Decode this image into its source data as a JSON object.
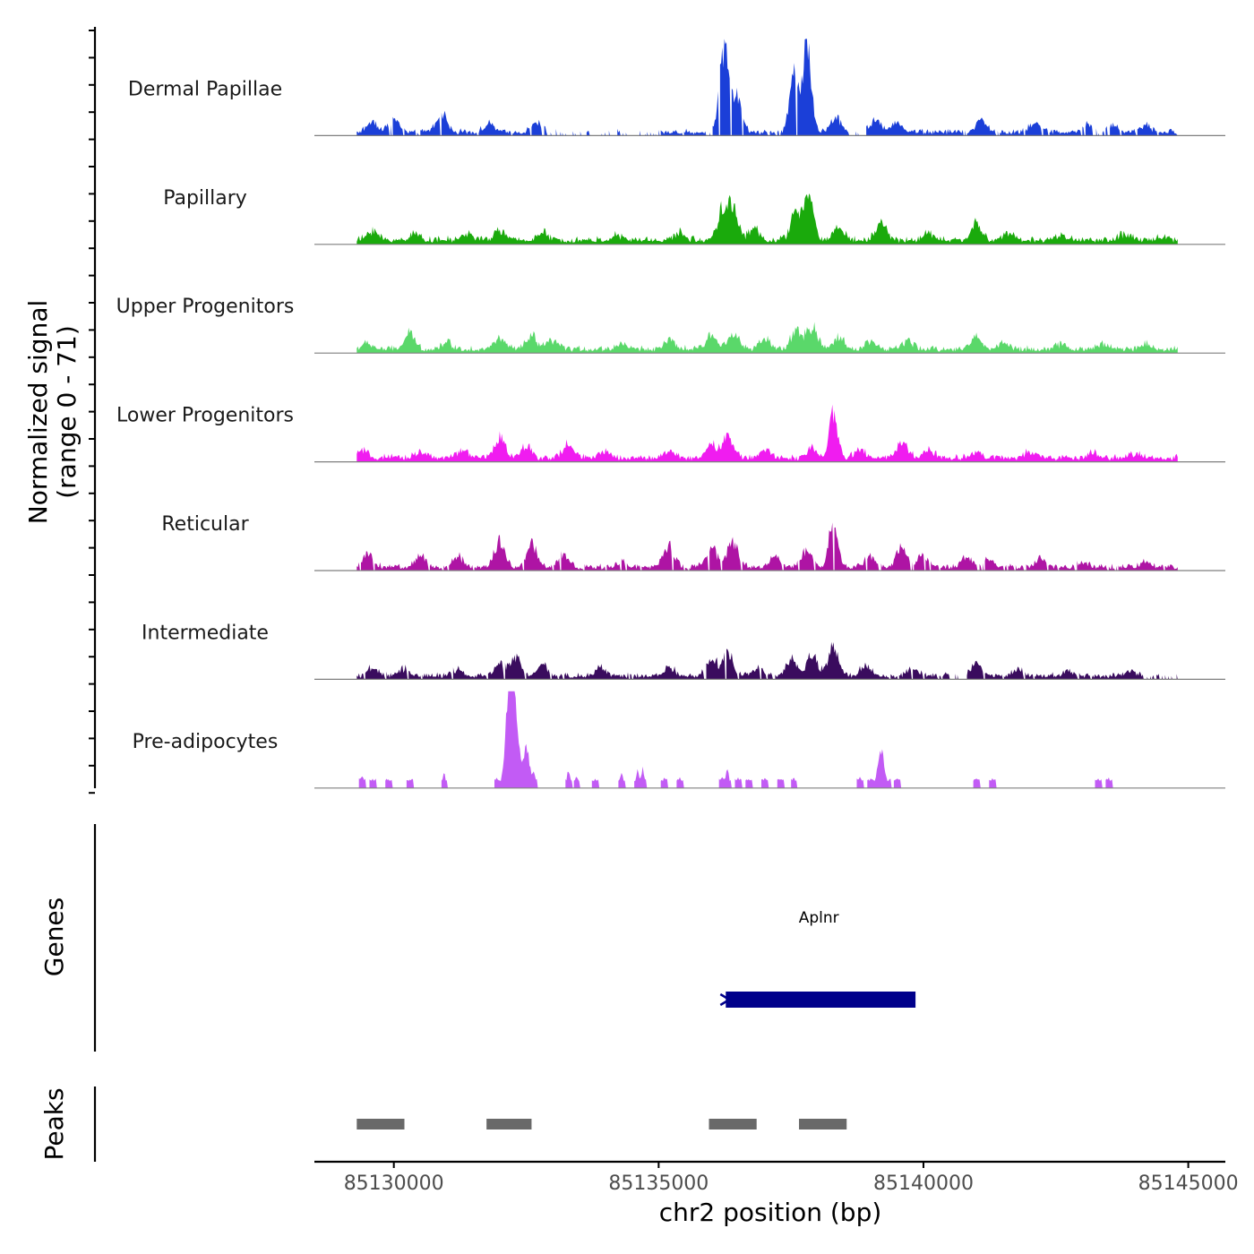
{
  "chart_data": {
    "type": "area",
    "title": "",
    "region": {
      "chrom": "chr2",
      "start": 85128500,
      "end": 85145700
    },
    "xlabel": "chr2 position (bp)",
    "x_ticks": [
      85130000,
      85135000,
      85140000,
      85145000
    ],
    "x_tick_labels": [
      "85130000",
      "85135000",
      "85140000",
      "85145000"
    ],
    "coverage_ylabel_line1": "Normalized signal",
    "coverage_ylabel_line2": "(range 0 - 71)",
    "y_range": [
      0,
      71
    ],
    "track_extent": [
      85129300,
      85144800
    ],
    "series": [
      {
        "name": "Dermal Papillae",
        "color": "#1B3FD8",
        "peaks": [
          [
            85129600,
            8
          ],
          [
            85130000,
            9
          ],
          [
            85130900,
            14
          ],
          [
            85131800,
            6
          ],
          [
            85132700,
            7
          ],
          [
            85136200,
            42
          ],
          [
            85136300,
            38
          ],
          [
            85136500,
            26
          ],
          [
            85137550,
            44
          ],
          [
            85137800,
            69
          ],
          [
            85138350,
            10
          ],
          [
            85139100,
            9
          ],
          [
            85139500,
            8
          ],
          [
            85141100,
            8
          ],
          [
            85142100,
            7
          ],
          [
            85143100,
            5
          ],
          [
            85143600,
            5
          ],
          [
            85144200,
            5
          ]
        ],
        "base": 2.5,
        "gaps": [
          [
            85132800,
            85135000
          ],
          [
            85135900,
            85136000
          ],
          [
            85138600,
            85138900
          ],
          [
            85143200,
            85143500
          ]
        ]
      },
      {
        "name": "Papillary",
        "color": "#1AAA0C",
        "peaks": [
          [
            85129600,
            7
          ],
          [
            85130400,
            5
          ],
          [
            85131400,
            5
          ],
          [
            85132000,
            7
          ],
          [
            85132800,
            5
          ],
          [
            85134200,
            3
          ],
          [
            85135400,
            5
          ],
          [
            85136200,
            20
          ],
          [
            85136400,
            22
          ],
          [
            85136800,
            8
          ],
          [
            85137600,
            22
          ],
          [
            85137850,
            35
          ],
          [
            85138400,
            10
          ],
          [
            85139200,
            13
          ],
          [
            85140100,
            5
          ],
          [
            85141000,
            11
          ],
          [
            85141600,
            5
          ],
          [
            85142600,
            4
          ],
          [
            85143800,
            4
          ],
          [
            85144500,
            3
          ]
        ],
        "base": 3.0,
        "gaps": []
      },
      {
        "name": "Upper Progenitors",
        "color": "#5AD86A",
        "peaks": [
          [
            85129500,
            4
          ],
          [
            85130300,
            11
          ],
          [
            85131000,
            5
          ],
          [
            85132000,
            8
          ],
          [
            85132600,
            9
          ],
          [
            85133000,
            6
          ],
          [
            85134300,
            4
          ],
          [
            85135200,
            6
          ],
          [
            85136000,
            10
          ],
          [
            85136400,
            13
          ],
          [
            85137000,
            7
          ],
          [
            85137600,
            14
          ],
          [
            85137900,
            16
          ],
          [
            85138400,
            9
          ],
          [
            85139000,
            6
          ],
          [
            85139700,
            6
          ],
          [
            85141000,
            9
          ],
          [
            85141500,
            5
          ],
          [
            85142600,
            3
          ],
          [
            85143400,
            4
          ],
          [
            85144200,
            4
          ]
        ],
        "base": 2.8,
        "gaps": []
      },
      {
        "name": "Lower Progenitors",
        "color": "#F01CF0",
        "peaks": [
          [
            85129400,
            5
          ],
          [
            85130500,
            5
          ],
          [
            85131300,
            6
          ],
          [
            85132000,
            16
          ],
          [
            85132500,
            8
          ],
          [
            85133300,
            10
          ],
          [
            85134000,
            5
          ],
          [
            85135200,
            5
          ],
          [
            85136000,
            10
          ],
          [
            85136300,
            16
          ],
          [
            85137000,
            6
          ],
          [
            85137900,
            6
          ],
          [
            85138300,
            32
          ],
          [
            85138800,
            6
          ],
          [
            85139600,
            12
          ],
          [
            85140100,
            6
          ],
          [
            85141000,
            5
          ],
          [
            85142000,
            4
          ],
          [
            85143200,
            3
          ],
          [
            85144000,
            3
          ]
        ],
        "base": 2.8,
        "gaps": []
      },
      {
        "name": "Reticular",
        "color": "#AE14A4",
        "peaks": [
          [
            85129500,
            9
          ],
          [
            85130500,
            8
          ],
          [
            85131200,
            8
          ],
          [
            85132000,
            19
          ],
          [
            85132600,
            16
          ],
          [
            85133200,
            8
          ],
          [
            85134300,
            4
          ],
          [
            85135200,
            16
          ],
          [
            85136000,
            14
          ],
          [
            85136400,
            19
          ],
          [
            85137200,
            8
          ],
          [
            85137800,
            12
          ],
          [
            85138300,
            35
          ],
          [
            85139000,
            8
          ],
          [
            85139600,
            14
          ],
          [
            85140000,
            9
          ],
          [
            85140800,
            7
          ],
          [
            85141200,
            6
          ],
          [
            85142200,
            6
          ],
          [
            85143000,
            4
          ],
          [
            85144200,
            4
          ]
        ],
        "base": 2.5,
        "gaps": []
      },
      {
        "name": "Intermediate",
        "color": "#3A0C5E",
        "peaks": [
          [
            85129600,
            5
          ],
          [
            85130200,
            5
          ],
          [
            85131200,
            4
          ],
          [
            85132000,
            9
          ],
          [
            85132300,
            13
          ],
          [
            85132800,
            8
          ],
          [
            85133900,
            7
          ],
          [
            85135200,
            6
          ],
          [
            85136000,
            12
          ],
          [
            85136300,
            16
          ],
          [
            85136900,
            7
          ],
          [
            85137500,
            12
          ],
          [
            85137900,
            15
          ],
          [
            85138300,
            21
          ],
          [
            85138900,
            7
          ],
          [
            85139800,
            5
          ],
          [
            85141000,
            9
          ],
          [
            85141800,
            4
          ],
          [
            85142700,
            3
          ],
          [
            85143900,
            4
          ]
        ],
        "base": 2.5,
        "gaps": [
          [
            85140450,
            85140800
          ],
          [
            85144150,
            85144800
          ]
        ]
      },
      {
        "name": "Pre-adipocytes",
        "color": "#C25BF5",
        "peaks": [
          [
            85129400,
            9
          ],
          [
            85129600,
            7
          ],
          [
            85129900,
            7
          ],
          [
            85130300,
            7
          ],
          [
            85130950,
            10
          ],
          [
            85131950,
            7
          ],
          [
            85132150,
            35
          ],
          [
            85132220,
            60
          ],
          [
            85132300,
            40
          ],
          [
            85132500,
            29
          ],
          [
            85132650,
            9
          ],
          [
            85133300,
            13
          ],
          [
            85133450,
            8
          ],
          [
            85133800,
            7
          ],
          [
            85134300,
            10
          ],
          [
            85134600,
            12
          ],
          [
            85134700,
            14
          ],
          [
            85135100,
            7
          ],
          [
            85135400,
            7
          ],
          [
            85136200,
            9
          ],
          [
            85136300,
            13
          ],
          [
            85136500,
            7
          ],
          [
            85136700,
            7
          ],
          [
            85137000,
            7
          ],
          [
            85137300,
            7
          ],
          [
            85137550,
            7
          ],
          [
            85138800,
            8
          ],
          [
            85139000,
            7
          ],
          [
            85139200,
            28
          ],
          [
            85139500,
            7
          ],
          [
            85141000,
            7
          ],
          [
            85141300,
            7
          ],
          [
            85143300,
            7
          ],
          [
            85143500,
            7
          ]
        ],
        "base": 0,
        "gaps": []
      }
    ],
    "genes_label": "Genes",
    "genes": [
      {
        "name": "Aplnr",
        "start": 85136200,
        "end": 85139850,
        "strand": "-"
      }
    ],
    "peaks_label": "Peaks",
    "peak_regions": [
      {
        "start": 85129300,
        "end": 85130200
      },
      {
        "start": 85131750,
        "end": 85132600
      },
      {
        "start": 85135950,
        "end": 85136850
      },
      {
        "start": 85137650,
        "end": 85138550
      }
    ],
    "colors": {
      "axis": "#000000",
      "baseline": "#7F7F7F",
      "peak_bar": "#696969",
      "gene": "#00008B",
      "tick_text": "#4D4D4D"
    }
  }
}
